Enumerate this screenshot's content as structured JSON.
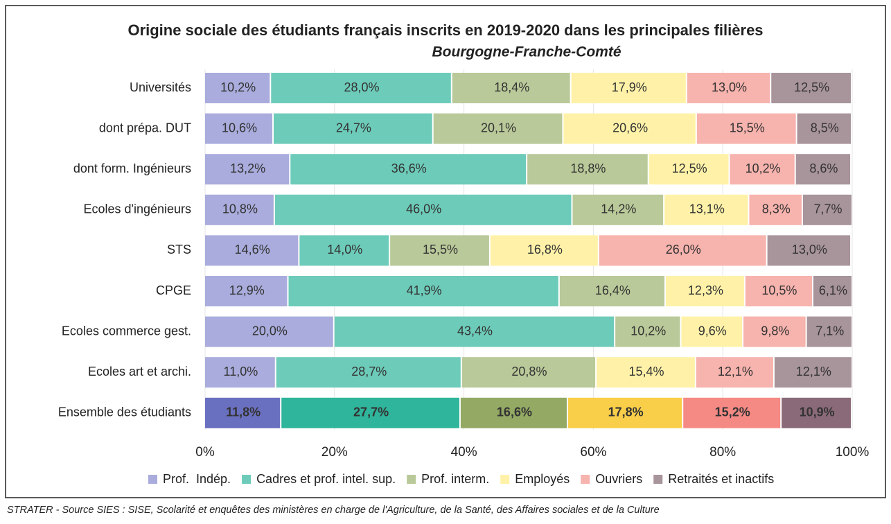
{
  "chart_data": {
    "type": "stacked_barh",
    "title": "Origine sociale des étudiants français inscrits en 2019-2020 dans les principales filières",
    "subtitle": "Bourgogne-Franche-Comté",
    "categories": [
      "Universités",
      "dont prépa. DUT",
      "dont form. Ingénieurs",
      "Ecoles d'ingénieurs",
      "STS",
      "CPGE",
      "Ecoles commerce gest.",
      "Ecoles art et archi.",
      "Ensemble des étudiants"
    ],
    "series": [
      {
        "name": "Prof.  Indép.",
        "color": "#a9acdc",
        "highlight_color": "#6a70c0",
        "values": [
          10.2,
          10.6,
          13.2,
          10.8,
          14.6,
          12.9,
          20.0,
          11.0,
          11.8
        ],
        "value_labels": [
          "10,2%",
          "10,6%",
          "13,2%",
          "10,8%",
          "14,6%",
          "12,9%",
          "20,0%",
          "11,0%",
          "11,8%"
        ]
      },
      {
        "name": "Cadres et prof. intel. sup.",
        "color": "#6dcbb9",
        "highlight_color": "#2fb59b",
        "values": [
          28.0,
          24.7,
          36.6,
          46.0,
          14.0,
          41.9,
          43.4,
          28.7,
          27.7
        ],
        "value_labels": [
          "28,0%",
          "24,7%",
          "36,6%",
          "46,0%",
          "14,0%",
          "41,9%",
          "43,4%",
          "28,7%",
          "27,7%"
        ]
      },
      {
        "name": "Prof. interm.",
        "color": "#b9c999",
        "highlight_color": "#93a964",
        "values": [
          18.4,
          20.1,
          18.8,
          14.2,
          15.5,
          16.4,
          10.2,
          20.8,
          16.6
        ],
        "value_labels": [
          "18,4%",
          "20,1%",
          "18,8%",
          "14,2%",
          "15,5%",
          "16,4%",
          "10,2%",
          "20,8%",
          "16,6%"
        ]
      },
      {
        "name": "Employés",
        "color": "#fff2a8",
        "highlight_color": "#f9cf4a",
        "values": [
          17.9,
          20.6,
          12.5,
          13.1,
          16.8,
          12.3,
          9.6,
          15.4,
          17.8
        ],
        "value_labels": [
          "17,9%",
          "20,6%",
          "12,5%",
          "13,1%",
          "16,8%",
          "12,3%",
          "9,6%",
          "15,4%",
          "17,8%"
        ]
      },
      {
        "name": "Ouvriers",
        "color": "#f7b3ad",
        "highlight_color": "#f58a85",
        "values": [
          13.0,
          15.5,
          10.2,
          8.3,
          26.0,
          10.5,
          9.8,
          12.1,
          15.2
        ],
        "value_labels": [
          "13,0%",
          "15,5%",
          "10,2%",
          "8,3%",
          "26,0%",
          "10,5%",
          "9,8%",
          "12,1%",
          "15,2%"
        ]
      },
      {
        "name": "Retraités et inactifs",
        "color": "#a8949b",
        "highlight_color": "#8a6a78",
        "values": [
          12.5,
          8.5,
          8.6,
          7.7,
          13.0,
          6.1,
          7.1,
          12.1,
          10.9
        ],
        "value_labels": [
          "12,5%",
          "8,5%",
          "8,6%",
          "7,7%",
          "13,0%",
          "6,1%",
          "7,1%",
          "12,1%",
          "10,9%"
        ]
      }
    ],
    "xlim": [
      0,
      100
    ],
    "xticks": [
      {
        "value": 0,
        "label": "0%"
      },
      {
        "value": 20,
        "label": "20%"
      },
      {
        "value": 40,
        "label": "40%"
      },
      {
        "value": 60,
        "label": "60%"
      },
      {
        "value": 80,
        "label": "80%"
      },
      {
        "value": 100,
        "label": "100%"
      }
    ],
    "grid": true,
    "legend": "bottom",
    "source": "STRATER - Source SIES : SISE, Scolarité et enquêtes des ministères en charge de l'Agriculture, de la Santé, des Affaires sociales et de la Culture"
  }
}
